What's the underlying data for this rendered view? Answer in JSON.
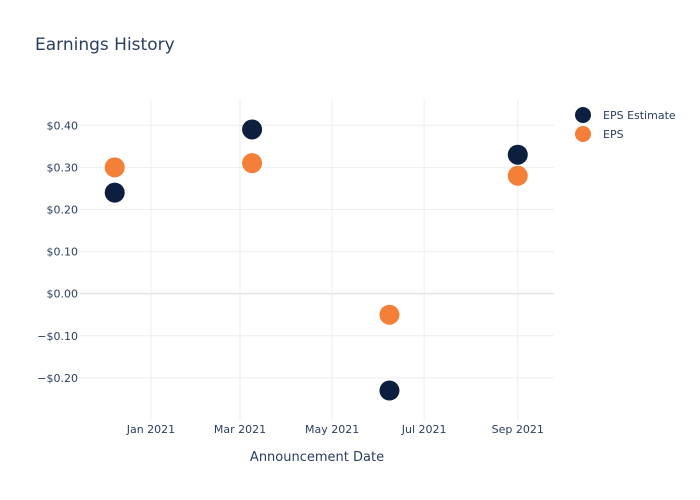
{
  "chart_data": {
    "type": "scatter",
    "title": "Earnings History",
    "xlabel": "Announcement Date",
    "ylabel": "",
    "x_axis": {
      "type": "date",
      "range": [
        "2020-11-15",
        "2021-09-25"
      ],
      "ticks": [
        {
          "value": "2021-01-01",
          "label": "Jan 2021"
        },
        {
          "value": "2021-03-01",
          "label": "Mar 2021"
        },
        {
          "value": "2021-05-01",
          "label": "May 2021"
        },
        {
          "value": "2021-07-01",
          "label": "Jul 2021"
        },
        {
          "value": "2021-09-01",
          "label": "Sep 2021"
        }
      ]
    },
    "y_axis": {
      "range": [
        -0.3,
        0.46
      ],
      "ticks": [
        {
          "value": 0.4,
          "label": "$0.40"
        },
        {
          "value": 0.3,
          "label": "$0.30"
        },
        {
          "value": 0.2,
          "label": "$0.20"
        },
        {
          "value": 0.1,
          "label": "$0.10"
        },
        {
          "value": 0.0,
          "label": "$0.00"
        },
        {
          "value": -0.1,
          "label": "−$0.10"
        },
        {
          "value": -0.2,
          "label": "−$0.20"
        }
      ]
    },
    "grid": true,
    "legend_position": "top-right",
    "series": [
      {
        "name": "EPS Estimate",
        "color": "#0d1f3f",
        "points": [
          {
            "x": "2020-12-08",
            "y": 0.24
          },
          {
            "x": "2021-03-09",
            "y": 0.39
          },
          {
            "x": "2021-06-08",
            "y": -0.23
          },
          {
            "x": "2021-09-01",
            "y": 0.33
          }
        ]
      },
      {
        "name": "EPS",
        "color": "#f37f38",
        "points": [
          {
            "x": "2020-12-08",
            "y": 0.3
          },
          {
            "x": "2021-03-09",
            "y": 0.31
          },
          {
            "x": "2021-06-08",
            "y": -0.05
          },
          {
            "x": "2021-09-01",
            "y": 0.28
          }
        ]
      }
    ]
  }
}
